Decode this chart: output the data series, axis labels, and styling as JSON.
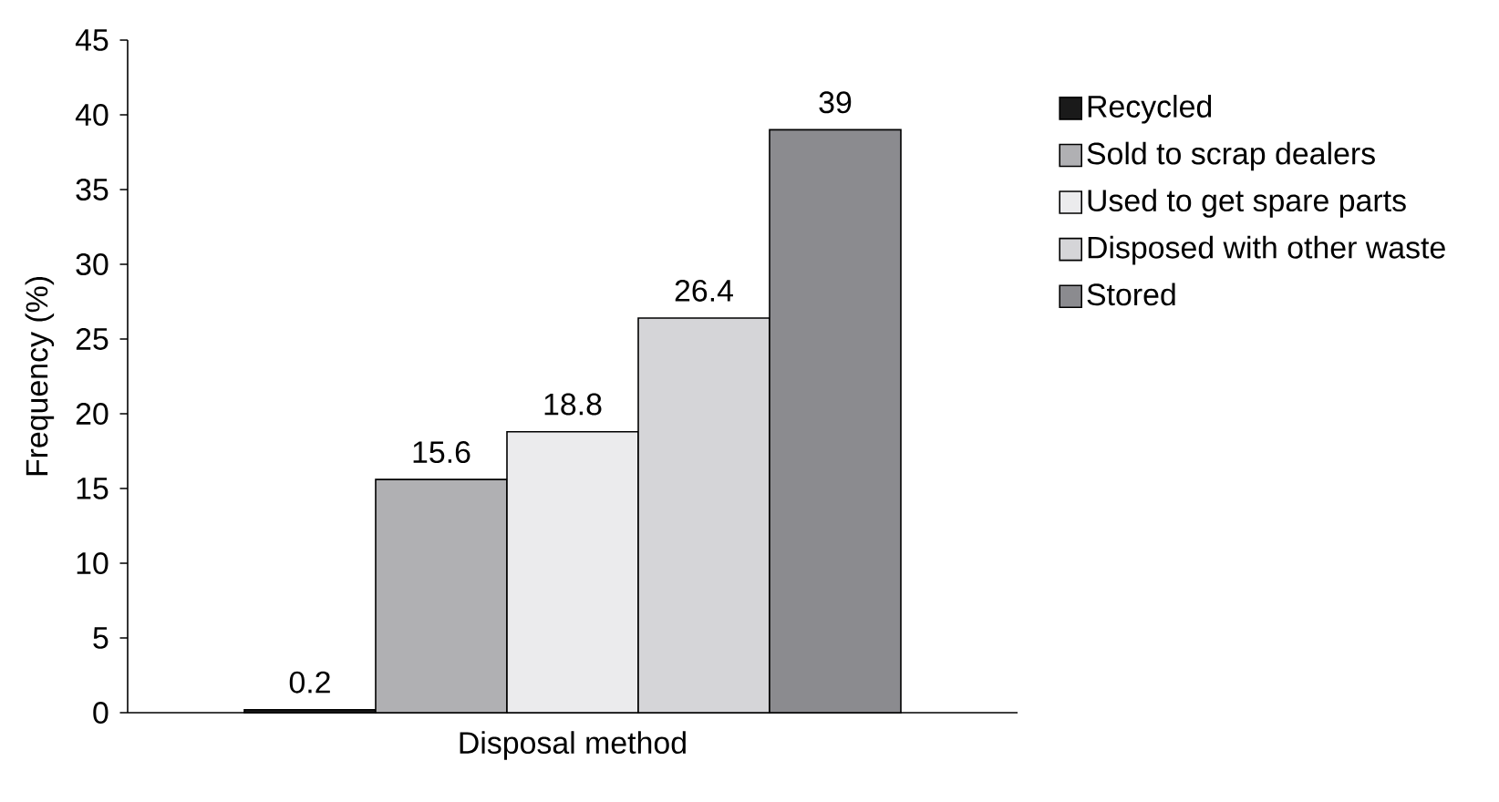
{
  "chart_data": {
    "type": "bar",
    "xlabel": "Disposal method",
    "ylabel": "Frequency (%)",
    "categories": [
      null
    ],
    "series": [
      {
        "name": "Recycled",
        "color": "#1a1a1a",
        "values": [
          0.2
        ]
      },
      {
        "name": "Sold to scrap dealers",
        "color": "#b0b0b3",
        "values": [
          15.6
        ]
      },
      {
        "name": "Used to get spare parts",
        "color": "#ebebed",
        "values": [
          18.8
        ]
      },
      {
        "name": "Disposed with other waste",
        "color": "#d5d5d8",
        "values": [
          26.4
        ]
      },
      {
        "name": "Stored",
        "color": "#8b8b8f",
        "values": [
          39
        ]
      }
    ],
    "ylim": [
      0,
      45
    ],
    "yticks": [
      0,
      5,
      10,
      15,
      20,
      25,
      30,
      35,
      40,
      45
    ],
    "data_labels": true,
    "legend": "right"
  }
}
